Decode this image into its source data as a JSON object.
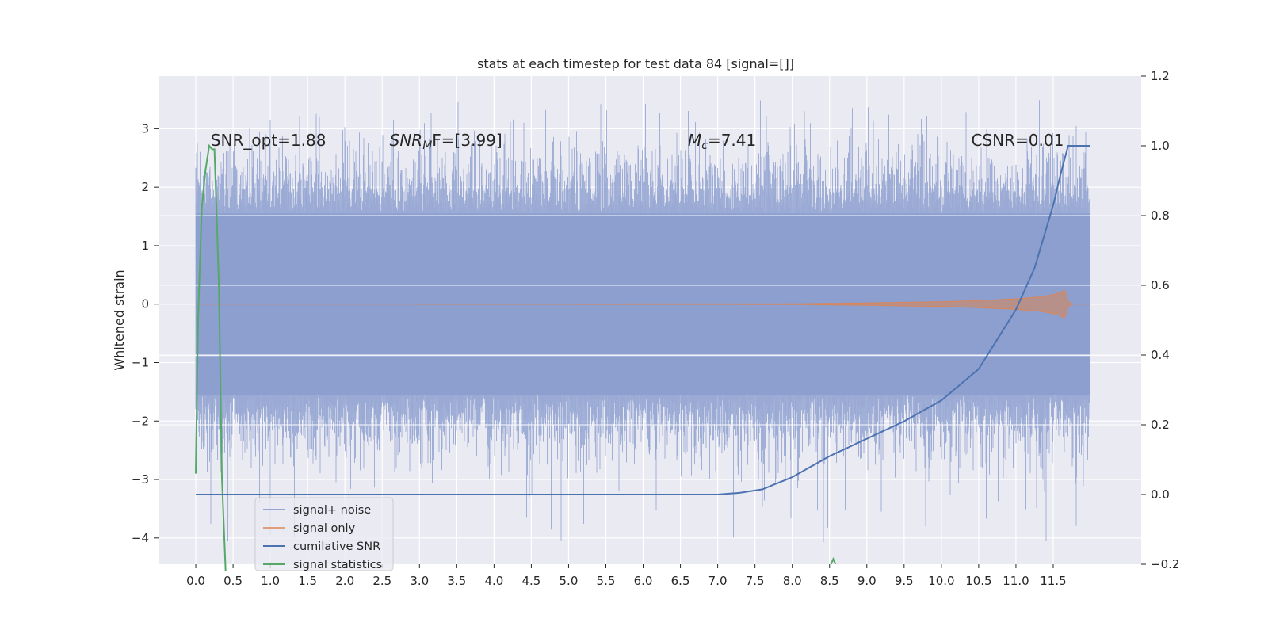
{
  "chart_data": {
    "type": "line",
    "title": "stats at each timestep for test data 84 [signal=[]]",
    "ylabel": "Whitened strain",
    "xlim": [
      -0.5,
      12.68
    ],
    "ylim": [
      -4.45,
      3.9
    ],
    "y2lim": [
      -0.2,
      1.2
    ],
    "x_ticks": [
      0.0,
      0.5,
      1.0,
      1.5,
      2.0,
      2.5,
      3.0,
      3.5,
      4.0,
      4.5,
      5.0,
      5.5,
      6.0,
      6.5,
      7.0,
      7.5,
      8.0,
      8.5,
      9.0,
      9.5,
      10.0,
      10.5,
      11.0,
      11.5
    ],
    "x_tick_labels": [
      "0.0",
      "0.5",
      "1.0",
      "1.5",
      "2.0",
      "2.5",
      "3.0",
      "3.5",
      "4.0",
      "4.5",
      "5.0",
      "5.5",
      "6.0",
      "6.5",
      "7.0",
      "7.5",
      "8.0",
      "8.5",
      "9.0",
      "9.5",
      "10.0",
      "10.5",
      "11.0",
      "11.5"
    ],
    "y_ticks": [
      3,
      2,
      1,
      0,
      -1,
      -2,
      -3,
      -4
    ],
    "y_tick_labels": [
      "3",
      "2",
      "1",
      "0",
      "−1",
      "−2",
      "−3",
      "−4"
    ],
    "y2_ticks": [
      1.2,
      1.0,
      0.8,
      0.6,
      0.4,
      0.2,
      0.0,
      -0.2
    ],
    "y2_tick_labels": [
      "1.2",
      "1.0",
      "0.8",
      "0.6",
      "0.4",
      "0.2",
      "0.0",
      "−0.2"
    ],
    "grid": true,
    "legend_position": "lower-left",
    "annotations": [
      {
        "text": "SNR_opt=1.88",
        "x": 0.2,
        "y": 2.8
      },
      {
        "text": "SNR",
        "sub": "M",
        "tail": "F=[3.99]",
        "x": 2.6,
        "y": 2.8
      },
      {
        "text": "M",
        "sub": "c",
        "tail": "=7.41",
        "x": 6.6,
        "y": 2.8
      },
      {
        "text": "CSNR=0.01",
        "x": 10.4,
        "y": 2.8
      }
    ],
    "series": [
      {
        "name": "signal+ noise",
        "axis": "left",
        "color": "#8c9fcf",
        "x_range": [
          0.0,
          12.0
        ],
        "envelope_upper": 1.55,
        "envelope_lower": -1.55,
        "max_peak": 3.5,
        "min_trough": -4.1
      },
      {
        "name": "signal only",
        "axis": "left",
        "color": "#dd8452",
        "x": [
          0.0,
          8.0,
          9.0,
          10.0,
          10.5,
          11.0,
          11.3,
          11.5,
          11.6,
          11.65,
          11.7,
          11.75,
          12.0
        ],
        "amplitude": [
          0.0,
          0.005,
          0.02,
          0.04,
          0.06,
          0.09,
          0.12,
          0.16,
          0.2,
          0.25,
          0.05,
          0.0,
          0.0
        ]
      },
      {
        "name": "cumilative SNR",
        "axis": "right",
        "color": "#4c72b0",
        "x": [
          0.0,
          7.0,
          7.3,
          7.6,
          8.0,
          8.5,
          9.0,
          9.5,
          10.0,
          10.5,
          11.0,
          11.25,
          11.5,
          11.6,
          11.7,
          12.0
        ],
        "y": [
          0.0,
          0.0,
          0.005,
          0.015,
          0.05,
          0.11,
          0.16,
          0.21,
          0.27,
          0.36,
          0.53,
          0.65,
          0.83,
          0.92,
          1.0,
          1.0
        ]
      },
      {
        "name": "signal statistics",
        "axis": "right",
        "color": "#55a868",
        "x": [
          0.0,
          0.03,
          0.08,
          0.13,
          0.18,
          0.22,
          0.25,
          0.28,
          0.31,
          0.35,
          0.4
        ],
        "y": [
          0.06,
          0.5,
          0.82,
          0.93,
          1.0,
          0.99,
          0.99,
          0.8,
          0.6,
          0.05,
          -0.22
        ],
        "blip_x": 8.55,
        "blip_y": -0.185
      }
    ]
  }
}
